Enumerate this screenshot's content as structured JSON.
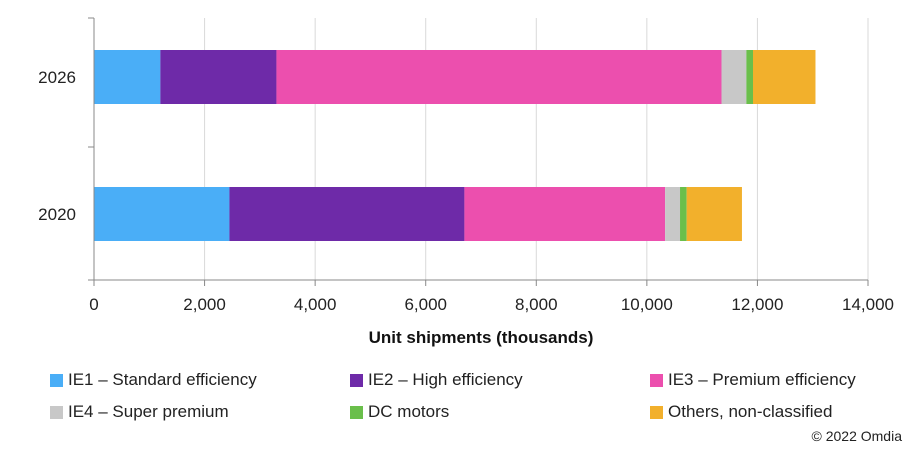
{
  "chart_data": {
    "type": "bar",
    "orientation": "horizontal",
    "stacked": true,
    "categories": [
      "2026",
      "2020"
    ],
    "series": [
      {
        "name": "IE1 – Standard efficiency",
        "color": "#4aaef7",
        "values": [
          1200,
          2450
        ]
      },
      {
        "name": "IE2 – High efficiency",
        "color": "#6e2aa8",
        "values": [
          2100,
          4250
        ]
      },
      {
        "name": "IE3 – Premium efficiency",
        "color": "#ec4fae",
        "values": [
          8050,
          3630
        ]
      },
      {
        "name": "IE4 – Super premium",
        "color": "#c8c8c8",
        "values": [
          450,
          270
        ]
      },
      {
        "name": "DC motors",
        "color": "#6abf4b",
        "values": [
          120,
          120
        ]
      },
      {
        "name": "Others, non-classified",
        "color": "#f2b02c",
        "values": [
          1130,
          1000
        ]
      }
    ],
    "xlabel": "Unit shipments (thousands)",
    "ylabel": "",
    "xlim": [
      0,
      14000
    ],
    "xticks": [
      0,
      2000,
      4000,
      6000,
      8000,
      10000,
      12000,
      14000
    ],
    "xtick_labels": [
      "0",
      "2,000",
      "4,000",
      "6,000",
      "8,000",
      "10,000",
      "12,000",
      "14,000"
    ],
    "grid": "vertical",
    "legend_position": "bottom"
  },
  "footer": {
    "copyright": "© 2022 Omdia"
  }
}
